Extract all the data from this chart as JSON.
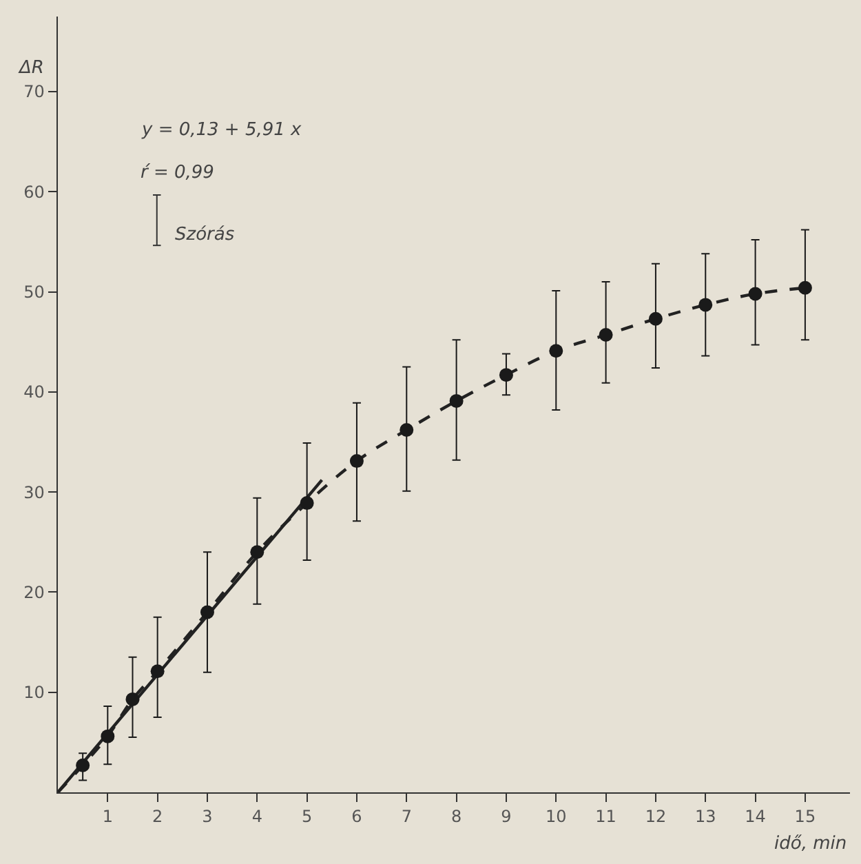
{
  "chart_data": {
    "type": "scatter",
    "xlabel": "idő, min",
    "ylabel": "ΔR",
    "xlim": [
      0,
      15.9
    ],
    "ylim": [
      0,
      77.5
    ],
    "xticks": [
      1,
      2,
      3,
      4,
      5,
      6,
      7,
      8,
      9,
      10,
      11,
      12,
      13,
      14,
      15
    ],
    "yticks": [
      10,
      20,
      30,
      40,
      50,
      60,
      70
    ],
    "grid": false,
    "series": [
      {
        "type": "line",
        "color": "#222222",
        "line_style": "dashed",
        "marker": "none",
        "x": [
          0,
          0.5,
          1,
          1.5,
          2,
          3,
          4,
          5,
          6,
          7,
          8,
          9,
          10,
          11,
          12,
          13,
          14,
          15
        ],
        "values": [
          0,
          2.7,
          5.6,
          9.3,
          12.1,
          18.0,
          24.0,
          28.9,
          33.1,
          36.2,
          39.1,
          41.7,
          44.1,
          45.7,
          47.3,
          48.7,
          49.8,
          50.4
        ]
      },
      {
        "type": "line",
        "color": "#222222",
        "line_style": "solid",
        "marker": "none",
        "x": [
          0,
          5.3
        ],
        "values": [
          0,
          31.2
        ]
      },
      {
        "color": "#1a1a1a",
        "marker": "circle",
        "x": [
          0.5,
          1,
          1.5,
          2,
          3,
          4,
          5,
          6,
          7,
          8,
          9,
          10,
          11,
          12,
          13,
          14,
          15
        ],
        "values": [
          2.7,
          5.6,
          9.3,
          12.1,
          18.0,
          24.0,
          28.9,
          33.1,
          36.2,
          39.1,
          41.7,
          44.1,
          45.7,
          47.3,
          48.7,
          49.8,
          50.4
        ],
        "errors": [
          [
            1.2,
            3.9
          ],
          [
            2.8,
            8.6
          ],
          [
            5.5,
            13.5
          ],
          [
            7.5,
            17.5
          ],
          [
            12.0,
            24.0
          ],
          [
            18.8,
            29.4
          ],
          [
            23.2,
            34.9
          ],
          [
            27.1,
            38.9
          ],
          [
            30.1,
            42.5
          ],
          [
            33.2,
            45.2
          ],
          [
            39.7,
            43.8
          ],
          [
            38.2,
            50.1
          ],
          [
            40.9,
            51.0
          ],
          [
            42.4,
            52.8
          ],
          [
            43.6,
            53.8
          ],
          [
            44.7,
            55.2
          ],
          [
            45.2,
            56.2
          ]
        ]
      }
    ],
    "annotations": [
      "y = 0,13 + 5,91 x",
      "ŕ = 0,99",
      "Szórás"
    ]
  }
}
